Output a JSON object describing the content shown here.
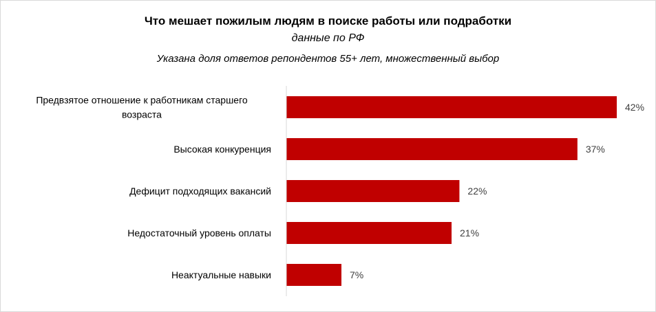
{
  "chart_data": {
    "type": "bar",
    "orientation": "horizontal",
    "title": "Что мешает пожилым людям в поиске работы или подработки",
    "subtitle": "данные по РФ",
    "note": "Указана доля ответов репондентов 55+ лет, множественный выбор",
    "categories": [
      "Предвзятое отношение к работникам старшего возраста",
      "Высокая конкуренция",
      "Дефицит подходящих вакансий",
      "Недостаточный уровень оплаты",
      "Неактуальные навыки"
    ],
    "category_lines": [
      [
        "Предвзятое отношение к работникам старшего",
        "возраста"
      ],
      [
        "Высокая конкуренция"
      ],
      [
        "Дефицит подходящих вакансий"
      ],
      [
        "Недостаточный уровень оплаты"
      ],
      [
        "Неактуальные навыки"
      ]
    ],
    "values": [
      42,
      37,
      22,
      21,
      7
    ],
    "data_labels": [
      "42%",
      "37%",
      "22%",
      "21%",
      "7%"
    ],
    "unit": "%",
    "xlim": [
      0,
      42
    ],
    "grid": false,
    "bar_color": "#c00000"
  }
}
